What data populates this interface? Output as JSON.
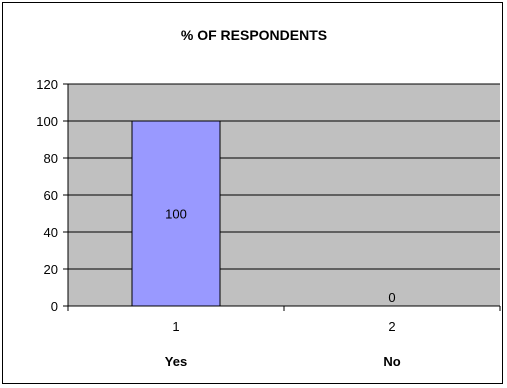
{
  "chart_data": {
    "type": "bar",
    "title": "% OF RESPONDENTS",
    "categories": [
      "1",
      "2"
    ],
    "category_labels": [
      "Yes",
      "No"
    ],
    "values": [
      100,
      0
    ],
    "data_labels": [
      "100",
      "0"
    ],
    "ylim": [
      0,
      120
    ],
    "yticks": [
      0,
      20,
      40,
      60,
      80,
      100,
      120
    ],
    "grid": true,
    "legend": "none",
    "colors": {
      "bar_fill": "#9999ff",
      "plot_background": "#c0c0c0",
      "gridline": "#000000"
    }
  }
}
